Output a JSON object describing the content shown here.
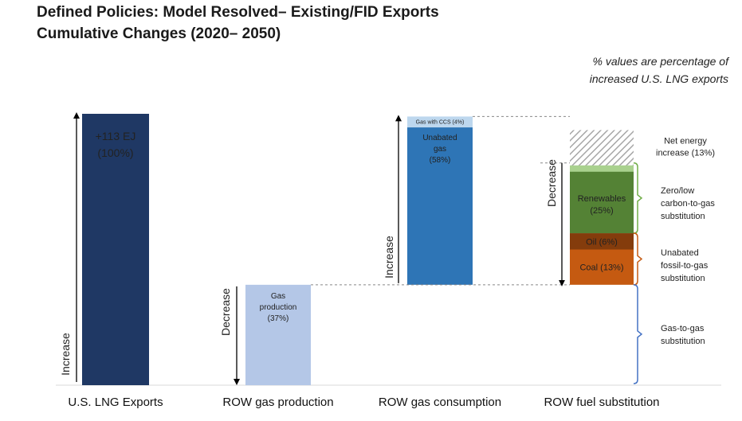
{
  "title_line1": "Defined Policies: Model Resolved– Existing/FID Exports",
  "title_line2": "Cumulative Changes (2020– 2050)",
  "note_line1": "% values are percentage of",
  "note_line2": "increased U.S. LNG exports",
  "colors": {
    "lng": "#1f3864",
    "production": "#b4c7e7",
    "unabated_gas": "#2e75b6",
    "gas_ccs": "#bdd7ee",
    "renewables": "#548235",
    "renewables_light": "#a9d18e",
    "oil": "#843c0c",
    "coal": "#c55a11",
    "net": "#a6a6a6",
    "zero_low": "#70ad47",
    "fossil": "#c55a11",
    "gas_to_gas": "#4472c4"
  },
  "chart_data": {
    "type": "bar",
    "subtype": "waterfall",
    "unit": "% of increased U.S. LNG exports",
    "categories": [
      "U.S. LNG Exports",
      "ROW gas production",
      "ROW gas consumption",
      "ROW fuel substitution"
    ],
    "bars": [
      {
        "category": "U.S. LNG Exports",
        "segments": [
          {
            "label_line1": "+113 EJ",
            "label_line2": "(100%)",
            "value": 100,
            "color_key": "lng"
          }
        ]
      },
      {
        "category": "ROW gas production",
        "segments": [
          {
            "label_line1": "Gas",
            "label_line2": "production",
            "label_line3": "(37%)",
            "value": 37,
            "color_key": "production"
          }
        ]
      },
      {
        "category": "ROW gas consumption",
        "segments": [
          {
            "label_line1": "Unabated",
            "label_line2": "gas",
            "label_line3": "(58%)",
            "value": 58,
            "color_key": "unabated_gas"
          },
          {
            "label_line1": "Gas with CCS (4%)",
            "value": 4,
            "color_key": "gas_ccs"
          }
        ]
      },
      {
        "category": "ROW fuel substitution",
        "segments": [
          {
            "label_line1": "Coal (13%)",
            "value": 13,
            "color_key": "coal"
          },
          {
            "label_line1": "Oil (6%)",
            "value": 6,
            "color_key": "oil"
          },
          {
            "label_line1": "Renewables",
            "label_line2": "(25%)",
            "value": 25,
            "color_key": "renewables"
          },
          {
            "label_line1": "Net energy",
            "label_line2": "increase (13%)",
            "value": 13,
            "color_key": "net"
          }
        ]
      }
    ],
    "arrows": {
      "lng_increase": "Increase",
      "production_decrease": "Decrease",
      "consumption_increase": "Increase",
      "substitution_decrease": "Decrease"
    },
    "brackets": [
      {
        "label_line1": "Zero/low",
        "label_line2": "carbon-to-gas",
        "label_line3": "substitution",
        "color_key": "zero_low"
      },
      {
        "label_line1": "Unabated",
        "label_line2": "fossil-to-gas",
        "label_line3": "substitution",
        "color_key": "fossil"
      },
      {
        "label_line1": "Gas-to-gas",
        "label_line2": "substitution",
        "color_key": "gas_to_gas"
      }
    ],
    "ylim": [
      0,
      100
    ]
  }
}
